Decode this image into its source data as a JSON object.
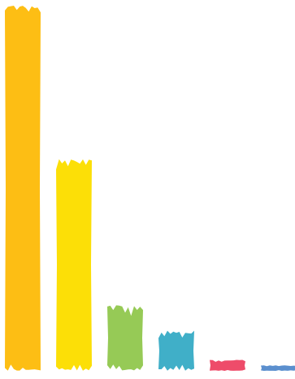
{
  "chart_data": {
    "type": "bar",
    "title": "",
    "xlabel": "",
    "ylabel": "",
    "grid": false,
    "legend": "none",
    "ylim": [
      0,
      100
    ],
    "categories": [
      "",
      "",
      "",
      "",
      "",
      ""
    ],
    "values": [
      100,
      58,
      18,
      11,
      3,
      1.5
    ],
    "colors": [
      "#FDBE14",
      "#FCDF07",
      "#96CA56",
      "#40AFC8",
      "#EE4C6A",
      "#5B8FCE"
    ]
  }
}
